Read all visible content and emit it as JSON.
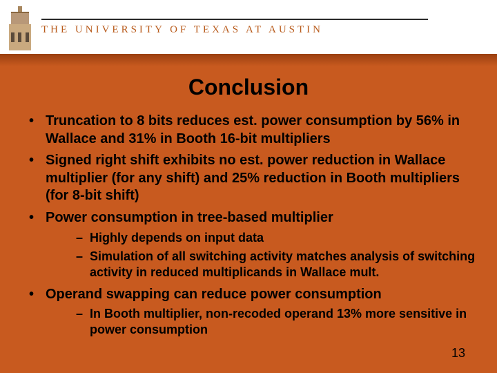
{
  "header": {
    "university_name": "THE UNIVERSITY OF TEXAS AT AUSTIN"
  },
  "colors": {
    "slide_bg": "#c85a1f",
    "header_bg": "#ffffff",
    "univ_text": "#b85a1a",
    "body_text": "#000000"
  },
  "title": "Conclusion",
  "bullets": [
    {
      "text": "Truncation to 8 bits reduces est. power consumption by 56% in Wallace and 31% in Booth 16-bit multipliers"
    },
    {
      "text": "Signed right shift exhibits no est. power reduction in Wallace multiplier (for any shift) and 25% reduction in Booth multipliers (for 8-bit shift)"
    },
    {
      "text": "Power consumption in tree-based multiplier",
      "sub": [
        "Highly depends on input data",
        "Simulation of all switching activity matches analysis of switching activity in reduced multiplicands in Wallace mult."
      ]
    },
    {
      "text": "Operand swapping can reduce power consumption",
      "sub": [
        "In Booth multiplier, non-recoded operand 13% more sensitive in power consumption"
      ]
    }
  ],
  "page_number": "13"
}
